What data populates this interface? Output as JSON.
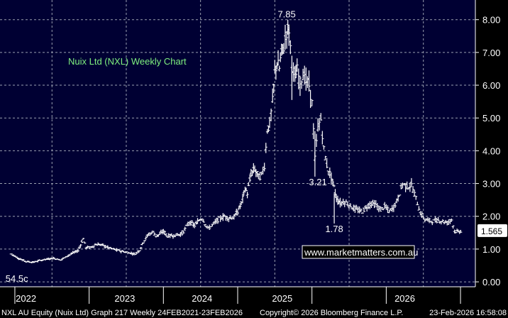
{
  "chart_data": {
    "type": "bar",
    "style": "ohlc-weekly",
    "title": "Nuix Ltd (NXL) Weekly Chart",
    "ylim": [
      -0.15,
      8.6
    ],
    "yticks": [
      "0.00",
      "1.00",
      "2.00",
      "3.00",
      "4.00",
      "5.00",
      "6.00",
      "7.00",
      "8.00"
    ],
    "ytick_values": [
      0,
      1,
      2,
      3,
      4,
      5,
      6,
      7,
      8
    ],
    "x_categories": [
      "2022",
      "2023",
      "2024",
      "2025",
      "2026"
    ],
    "last_price": "1.565",
    "last_value": 1.565,
    "annotations": [
      {
        "text": "7.85",
        "x": 2024.47,
        "y": 7.85
      },
      {
        "text": "3.21",
        "x": 2024.63,
        "y": 3.21
      },
      {
        "text": "1.78",
        "x": 2024.98,
        "y": 1.78
      },
      {
        "text": "54.5c",
        "x": 2021.2,
        "y": 0.545
      }
    ],
    "weekly_path": [
      [
        2021.15,
        0.85
      ],
      [
        2021.25,
        0.72
      ],
      [
        2021.35,
        0.62
      ],
      [
        2021.45,
        0.6
      ],
      [
        2021.55,
        0.66
      ],
      [
        2021.65,
        0.7
      ],
      [
        2021.72,
        0.72
      ],
      [
        2021.82,
        0.67
      ],
      [
        2021.9,
        0.78
      ],
      [
        2021.98,
        0.88
      ],
      [
        2022.05,
        0.95
      ],
      [
        2022.12,
        1.32
      ],
      [
        2022.16,
        1.05
      ],
      [
        2022.22,
        1.05
      ],
      [
        2022.3,
        1.15
      ],
      [
        2022.38,
        1.12
      ],
      [
        2022.45,
        1.05
      ],
      [
        2022.55,
        0.98
      ],
      [
        2022.65,
        0.93
      ],
      [
        2022.75,
        0.88
      ],
      [
        2022.82,
        0.85
      ],
      [
        2022.88,
        0.97
      ],
      [
        2022.93,
        1.22
      ],
      [
        2023.0,
        1.45
      ],
      [
        2023.06,
        1.52
      ],
      [
        2023.1,
        1.4
      ],
      [
        2023.15,
        1.45
      ],
      [
        2023.2,
        1.55
      ],
      [
        2023.25,
        1.4
      ],
      [
        2023.35,
        1.42
      ],
      [
        2023.45,
        1.47
      ],
      [
        2023.55,
        1.82
      ],
      [
        2023.62,
        1.72
      ],
      [
        2023.68,
        1.88
      ],
      [
        2023.72,
        1.95
      ],
      [
        2023.8,
        1.62
      ],
      [
        2023.88,
        1.78
      ],
      [
        2023.95,
        1.92
      ],
      [
        2024.02,
        2.0
      ],
      [
        2024.08,
        1.95
      ],
      [
        2024.15,
        1.97
      ],
      [
        2024.2,
        2.15
      ],
      [
        2024.25,
        2.4
      ],
      [
        2024.3,
        2.85
      ],
      [
        2024.33,
        2.7
      ],
      [
        2024.38,
        3.3
      ],
      [
        2024.43,
        3.45
      ],
      [
        2024.48,
        3.2
      ],
      [
        2024.52,
        3.25
      ],
      [
        2024.56,
        3.55
      ],
      [
        2024.6,
        4.65
      ],
      [
        2024.63,
        4.8
      ],
      [
        2024.67,
        5.5
      ],
      [
        2024.7,
        6.4
      ],
      [
        2024.73,
        6.7
      ],
      [
        2024.76,
        6.5
      ],
      [
        2024.79,
        7.05
      ],
      [
        2024.82,
        7.15
      ],
      [
        2024.86,
        7.65
      ],
      [
        2024.89,
        7.72
      ],
      [
        2024.93,
        6.6
      ],
      [
        2024.97,
        6.2
      ],
      [
        2025.0,
        6.45
      ],
      [
        2025.04,
        6.05
      ],
      [
        2025.08,
        6.35
      ],
      [
        2025.12,
        6.15
      ],
      [
        2025.16,
        6.0
      ],
      [
        2025.2,
        5.45
      ],
      [
        2025.24,
        3.75
      ],
      [
        2025.28,
        4.75
      ],
      [
        2025.32,
        4.95
      ],
      [
        2025.36,
        4.05
      ],
      [
        2025.4,
        3.55
      ],
      [
        2025.44,
        3.3
      ],
      [
        2025.48,
        3.05
      ],
      [
        2025.53,
        2.55
      ],
      [
        2025.58,
        2.4
      ],
      [
        2025.64,
        2.45
      ],
      [
        2025.7,
        2.35
      ],
      [
        2025.76,
        2.25
      ],
      [
        2025.82,
        2.18
      ],
      [
        2025.88,
        2.15
      ],
      [
        2025.94,
        2.3
      ],
      [
        2026.0,
        2.4
      ],
      [
        2026.06,
        2.35
      ],
      [
        2026.12,
        2.2
      ],
      [
        2026.18,
        2.3
      ],
      [
        2026.24,
        2.15
      ],
      [
        2026.3,
        2.28
      ],
      [
        2026.36,
        2.55
      ],
      [
        2026.42,
        3.0
      ],
      [
        2026.48,
        2.9
      ],
      [
        2026.54,
        2.95
      ],
      [
        2026.6,
        2.55
      ],
      [
        2026.66,
        2.1
      ],
      [
        2026.72,
        1.9
      ],
      [
        2026.78,
        1.87
      ],
      [
        2026.84,
        1.85
      ],
      [
        2026.9,
        1.88
      ],
      [
        2026.96,
        1.85
      ],
      [
        2027.02,
        1.8
      ],
      [
        2027.08,
        1.9
      ],
      [
        2027.12,
        1.55
      ],
      [
        2027.17,
        1.52
      ],
      [
        2027.22,
        1.565
      ]
    ]
  },
  "watermark": "www.marketmatters.com.au",
  "footer_left": "NXL AU Equity (Nuix Ltd) Graph 217 Weekly 24FEB2021-23FEB2026",
  "footer_center": "Copyright© 2026 Bloomberg Finance L.P.",
  "footer_right": "23-Feb-2026 16:58:08",
  "colors": {
    "background": "#000033",
    "grid": "#9aa0b0",
    "price": "#ffffff",
    "title": "#7ff07f",
    "last_box": "#ffffff"
  }
}
